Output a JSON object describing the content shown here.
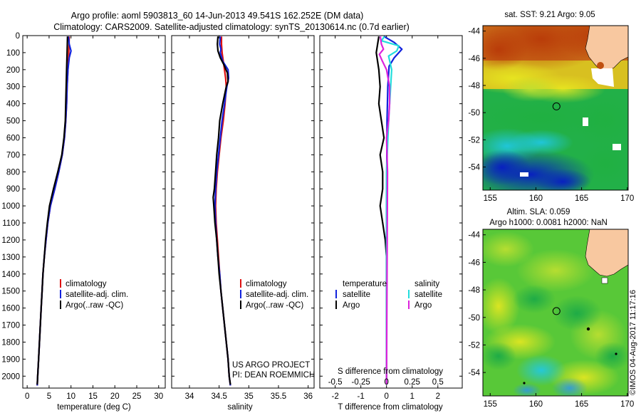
{
  "header": {
    "line1": "Argo profile: aoml 5903813_60 14-Jun-2013 49.541S 162.252E (DM data)",
    "line2": "Climatology: CARS2009. Satellite-adjusted climatology: synTS_20130614.nc (0.7d earlier)"
  },
  "colors": {
    "climatology": "#dd1111",
    "satellite": "#1122dd",
    "argo": "#000000",
    "sal_satellite": "#22dddd",
    "sal_argo": "#dd22dd"
  },
  "chart_data": [
    {
      "type": "line",
      "name": "temperature-panel",
      "xlabel": "temperature (deg C)",
      "ylabel": "",
      "xlim": [
        -1,
        31.5
      ],
      "ylim": [
        2070,
        0
      ],
      "xticks": [
        0,
        5,
        10,
        15,
        20,
        25,
        30
      ],
      "yticks": [
        0,
        100,
        200,
        300,
        400,
        500,
        600,
        700,
        800,
        900,
        1000,
        1100,
        1200,
        1300,
        1400,
        1500,
        1600,
        1700,
        1800,
        1900,
        2000
      ],
      "legend": [
        "climatology",
        "satellite-adj. clim.",
        "Argo(..raw -QC)"
      ],
      "series": [
        {
          "name": "climatology",
          "points": [
            [
              9.6,
              5
            ],
            [
              9.5,
              100
            ],
            [
              9.3,
              200
            ],
            [
              9.1,
              300
            ],
            [
              9.0,
              400
            ],
            [
              8.8,
              500
            ],
            [
              8.5,
              600
            ],
            [
              8.0,
              700
            ],
            [
              7.2,
              800
            ],
            [
              6.3,
              900
            ],
            [
              5.3,
              1000
            ],
            [
              4.7,
              1100
            ],
            [
              4.3,
              1200
            ],
            [
              3.9,
              1300
            ],
            [
              3.6,
              1400
            ],
            [
              3.4,
              1500
            ],
            [
              3.2,
              1600
            ],
            [
              3.0,
              1700
            ],
            [
              2.8,
              1800
            ],
            [
              2.6,
              1900
            ],
            [
              2.4,
              2000
            ],
            [
              2.3,
              2055
            ]
          ]
        },
        {
          "name": "satellite-adj. clim.",
          "points": [
            [
              9.4,
              5
            ],
            [
              9.6,
              50
            ],
            [
              10.0,
              90
            ],
            [
              9.6,
              130
            ],
            [
              9.3,
              200
            ],
            [
              9.1,
              300
            ],
            [
              9.0,
              400
            ],
            [
              8.8,
              500
            ],
            [
              8.5,
              600
            ],
            [
              8.0,
              700
            ],
            [
              7.2,
              800
            ],
            [
              6.3,
              900
            ],
            [
              5.3,
              1000
            ],
            [
              4.7,
              1100
            ],
            [
              4.3,
              1200
            ],
            [
              3.9,
              1300
            ],
            [
              3.6,
              1400
            ],
            [
              3.4,
              1500
            ],
            [
              3.2,
              1600
            ],
            [
              3.0,
              1700
            ],
            [
              2.8,
              1800
            ],
            [
              2.6,
              1900
            ],
            [
              2.4,
              2000
            ],
            [
              2.3,
              2055
            ]
          ]
        },
        {
          "name": "Argo(..raw -QC)",
          "points": [
            [
              9.2,
              5
            ],
            [
              9.1,
              100
            ],
            [
              9.0,
              200
            ],
            [
              8.9,
              300
            ],
            [
              8.8,
              400
            ],
            [
              8.7,
              500
            ],
            [
              8.4,
              600
            ],
            [
              7.9,
              700
            ],
            [
              7.0,
              800
            ],
            [
              6.0,
              900
            ],
            [
              5.1,
              1000
            ],
            [
              4.6,
              1100
            ],
            [
              4.2,
              1200
            ],
            [
              3.9,
              1300
            ],
            [
              3.6,
              1400
            ],
            [
              3.4,
              1500
            ],
            [
              3.2,
              1600
            ],
            [
              3.0,
              1700
            ],
            [
              2.8,
              1800
            ],
            [
              2.6,
              1900
            ],
            [
              2.4,
              2000
            ],
            [
              2.3,
              2050
            ]
          ]
        }
      ]
    },
    {
      "type": "line",
      "name": "salinity-panel",
      "xlabel": "salinity",
      "xlim": [
        33.7,
        36.1
      ],
      "ylim": [
        2070,
        0
      ],
      "xticks": [
        34,
        34.5,
        35,
        35.5,
        36
      ],
      "legend": [
        "climatology",
        "satellite-adj. clim.",
        "Argo(..raw -QC)"
      ],
      "annotation": [
        "US ARGO PROJECT",
        "PI: DEAN ROEMMICH"
      ],
      "series": [
        {
          "name": "climatology",
          "points": [
            [
              34.54,
              5
            ],
            [
              34.54,
              50
            ],
            [
              34.55,
              100
            ],
            [
              34.57,
              150
            ],
            [
              34.59,
              200
            ],
            [
              34.61,
              250
            ],
            [
              34.62,
              300
            ],
            [
              34.6,
              400
            ],
            [
              34.57,
              500
            ],
            [
              34.53,
              600
            ],
            [
              34.5,
              700
            ],
            [
              34.47,
              800
            ],
            [
              34.45,
              900
            ],
            [
              34.44,
              1000
            ],
            [
              34.45,
              1100
            ],
            [
              34.47,
              1200
            ],
            [
              34.49,
              1300
            ],
            [
              34.51,
              1400
            ],
            [
              34.53,
              1500
            ],
            [
              34.56,
              1600
            ],
            [
              34.59,
              1700
            ],
            [
              34.62,
              1800
            ],
            [
              34.65,
              1900
            ],
            [
              34.67,
              2000
            ],
            [
              34.69,
              2055
            ]
          ]
        },
        {
          "name": "satellite-adj. clim.",
          "points": [
            [
              34.52,
              5
            ],
            [
              34.51,
              50
            ],
            [
              34.53,
              80
            ],
            [
              34.52,
              100
            ],
            [
              34.56,
              150
            ],
            [
              34.65,
              200
            ],
            [
              34.66,
              250
            ],
            [
              34.63,
              300
            ],
            [
              34.59,
              400
            ],
            [
              34.55,
              500
            ],
            [
              34.52,
              600
            ],
            [
              34.49,
              700
            ],
            [
              34.46,
              800
            ],
            [
              34.44,
              900
            ],
            [
              34.43,
              1000
            ],
            [
              34.44,
              1100
            ],
            [
              34.46,
              1200
            ],
            [
              34.48,
              1300
            ],
            [
              34.51,
              1400
            ],
            [
              34.53,
              1500
            ],
            [
              34.56,
              1600
            ],
            [
              34.59,
              1700
            ],
            [
              34.62,
              1800
            ],
            [
              34.65,
              1900
            ],
            [
              34.67,
              2000
            ],
            [
              34.69,
              2055
            ]
          ]
        },
        {
          "name": "Argo(..raw -QC)",
          "points": [
            [
              34.48,
              5
            ],
            [
              34.47,
              50
            ],
            [
              34.48,
              90
            ],
            [
              34.52,
              130
            ],
            [
              34.58,
              170
            ],
            [
              34.64,
              220
            ],
            [
              34.65,
              270
            ],
            [
              34.62,
              300
            ],
            [
              34.56,
              400
            ],
            [
              34.51,
              500
            ],
            [
              34.49,
              600
            ],
            [
              34.46,
              700
            ],
            [
              34.44,
              800
            ],
            [
              34.42,
              900
            ],
            [
              34.4,
              950
            ],
            [
              34.41,
              1000
            ],
            [
              34.43,
              1100
            ],
            [
              34.46,
              1200
            ],
            [
              34.48,
              1300
            ],
            [
              34.5,
              1400
            ],
            [
              34.53,
              1500
            ],
            [
              34.56,
              1600
            ],
            [
              34.59,
              1700
            ],
            [
              34.62,
              1800
            ],
            [
              34.65,
              1900
            ],
            [
              34.67,
              2000
            ],
            [
              34.69,
              2050
            ]
          ]
        }
      ]
    },
    {
      "type": "line",
      "name": "difference-panel",
      "xlabel": "T difference from climatology",
      "xlabel_top": "S difference from climatology",
      "xlim": [
        -2.6,
        2.95
      ],
      "ylim": [
        2070,
        0
      ],
      "xticks": [
        -2,
        -1,
        0,
        1,
        2
      ],
      "xticks_salinity": [
        -0.5,
        -0.25,
        0,
        0.25,
        0.5
      ],
      "legend_temperature": {
        "title": "temperature",
        "items": [
          "satellite",
          "Argo"
        ]
      },
      "legend_salinity": {
        "title": "salinity",
        "items": [
          "satellite",
          "Argo"
        ]
      },
      "series": [
        {
          "name": "temperature satellite",
          "points": [
            [
              -0.1,
              5
            ],
            [
              0.3,
              40
            ],
            [
              0.6,
              80
            ],
            [
              0.3,
              130
            ],
            [
              0.1,
              180
            ],
            [
              0.05,
              300
            ],
            [
              0.02,
              500
            ],
            [
              0.0,
              1000
            ],
            [
              0.0,
              2050
            ]
          ]
        },
        {
          "name": "temperature Argo",
          "points": [
            [
              -0.3,
              5
            ],
            [
              -0.4,
              100
            ],
            [
              -0.3,
              200
            ],
            [
              -0.25,
              300
            ],
            [
              -0.3,
              400
            ],
            [
              -0.2,
              500
            ],
            [
              -0.1,
              600
            ],
            [
              -0.25,
              700
            ],
            [
              -0.15,
              800
            ],
            [
              -0.15,
              900
            ],
            [
              -0.25,
              1000
            ],
            [
              -0.15,
              1100
            ],
            [
              -0.05,
              1200
            ],
            [
              0.0,
              1300
            ],
            [
              0.0,
              1400
            ],
            [
              0.0,
              2050
            ]
          ]
        },
        {
          "name": "salinity satellite",
          "points": [
            [
              -0.02,
              5
            ],
            [
              -0.05,
              30
            ],
            [
              0.12,
              60
            ],
            [
              0.1,
              90
            ],
            [
              0.02,
              120
            ],
            [
              0.05,
              200
            ],
            [
              0.04,
              300
            ],
            [
              0.02,
              500
            ],
            [
              0.0,
              800
            ],
            [
              0.0,
              2050
            ]
          ]
        },
        {
          "name": "salinity Argo",
          "points": [
            [
              -0.06,
              5
            ],
            [
              -0.05,
              50
            ],
            [
              -0.03,
              80
            ],
            [
              -0.07,
              110
            ],
            [
              -0.04,
              150
            ],
            [
              0.0,
              200
            ],
            [
              0.03,
              300
            ],
            [
              0.03,
              400
            ],
            [
              0.02,
              500
            ],
            [
              0.0,
              600
            ],
            [
              0.01,
              800
            ],
            [
              0.0,
              2050
            ]
          ]
        }
      ]
    }
  ],
  "maps": {
    "sst": {
      "title": "sat. SST: 9.21  Argo: 9.05",
      "xticks": [
        155,
        160,
        165,
        170
      ],
      "yticks": [
        -44,
        -46,
        -48,
        -50,
        -52,
        -54
      ],
      "marker": {
        "lon": 162.252,
        "lat": -49.541
      }
    },
    "sla": {
      "title_line1": "Altim. SLA: 0.059",
      "title_line2": "Argo h1000: 0.0081 h2000: NaN",
      "xticks": [
        155,
        160,
        165,
        170
      ],
      "yticks": [
        -44,
        -46,
        -48,
        -50,
        -52,
        -54
      ],
      "marker": {
        "lon": 162.252,
        "lat": -49.541
      }
    },
    "credit": "©IMOS 04-Aug-2017 11:17:16"
  }
}
